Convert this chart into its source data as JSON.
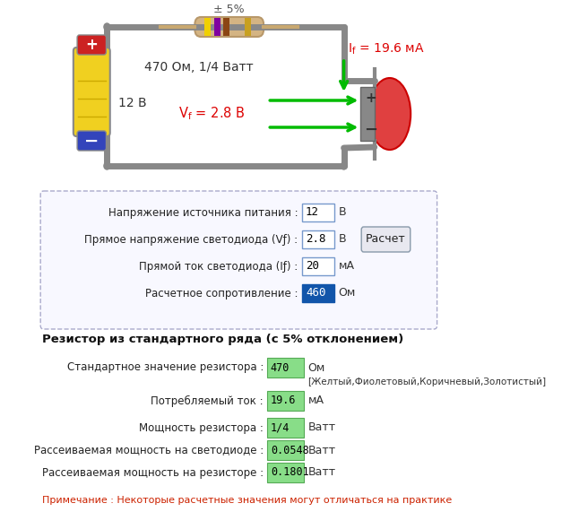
{
  "bg_color": "#ffffff",
  "circuit": {
    "resistor_label": "± 5%",
    "resistor_value": "470 Ом, 1/4 Ватт",
    "battery_label": "12 В",
    "vf_label": "V",
    "vf_sub": "f",
    "vf_value": "= 2.8 В",
    "if_label": "I",
    "if_sub": "f",
    "if_value": "= 19.6 мА"
  },
  "inputs": {
    "label1": "Напряжение источника питания :",
    "val1": "12",
    "unit1": "В",
    "label2": "Прямое напряжение светодиода (Vƒ) :",
    "val2": "2.8",
    "unit2": "В",
    "label3": "Прямой ток светодиода (Iƒ) :",
    "val3": "20",
    "unit3": "мА",
    "label4": "Расчетное сопротивление :",
    "val4": "460",
    "unit4": "Ом",
    "button_text": "Расчет"
  },
  "results": {
    "section_title": "Резистор из стандартного ряда (с 5% отклонением)",
    "label1": "Стандартное значение резистора :",
    "val1": "470",
    "unit1": "Ом",
    "sub1": "[Желтый,Фиолетовый,Коричневый,Золотистый]",
    "label2": "Потребляемый ток :",
    "val2": "19.6",
    "unit2": "мА",
    "label3": "Мощность резистора :",
    "val3": "1/4",
    "unit3": "Ватт",
    "label4": "Рассеиваемая мощность на светодиоде :",
    "val4": "0.0548",
    "unit4": "Ватт",
    "label5": "Рассеиваемая мощность на резисторе :",
    "val5": "0.1801",
    "unit5": "Ватт"
  },
  "note": "Примечание : Некоторые расчетные значения могут отличаться на практике"
}
